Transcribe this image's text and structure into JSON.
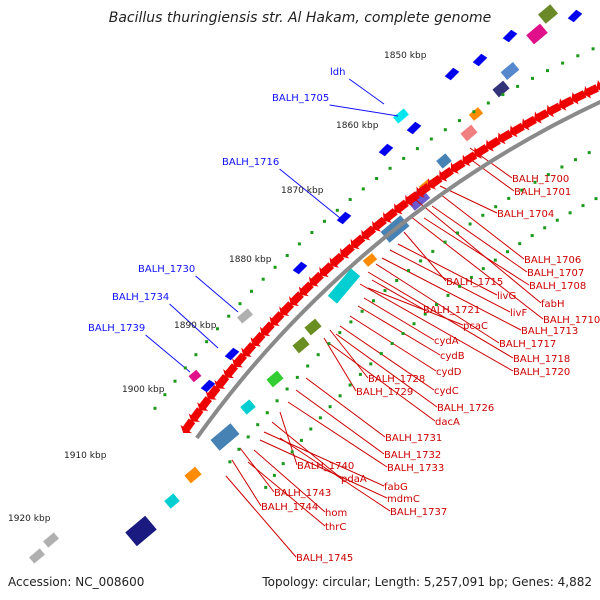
{
  "title": "Bacillus thuringiensis str. Al Hakam, complete genome",
  "footer": {
    "accession": "Accession: NC_008600",
    "topology": "Topology: circular; Length: 5,257,091 bp; Genes: 4,882"
  },
  "colors": {
    "backbone": "#8a8a8a",
    "cds_arrow": "#ee0000",
    "tick": "#1a9a1a",
    "blue_label": "#1010ff",
    "red_label": "#cc0000",
    "outer_arrow": "#0000ee"
  },
  "kbp_labels": [
    "1850 kbp",
    "1860 kbp",
    "1870 kbp",
    "1880 kbp",
    "1890 kbp",
    "1900 kbp",
    "1910 kbp",
    "1920 kbp"
  ],
  "blue_labels": [
    "ldh",
    "BALH_1705",
    "BALH_1716",
    "BALH_1730",
    "BALH_1734",
    "BALH_1739"
  ],
  "red_labels": [
    "BALH_1700",
    "BALH_1701",
    "BALH_1704",
    "BALH_1706",
    "BALH_1707",
    "BALH_1708",
    "BALH_1715",
    "livG",
    "fabH",
    "livF",
    "BALH_1710",
    "BALH_1713",
    "BALH_1721",
    "pcaC",
    "cydA",
    "BALH_1717",
    "cydB",
    "BALH_1718",
    "cydD",
    "BALH_1720",
    "BALH_1728",
    "BALH_1729",
    "cydC",
    "BALH_1726",
    "dacA",
    "BALH_1731",
    "BALH_1732",
    "BALH_1733",
    "BALH_1740",
    "pdaA",
    "fabG",
    "mdmC",
    "BALH_1743",
    "BALH_1744",
    "hom",
    "BALH_1737",
    "thrC",
    "BALH_1745"
  ]
}
